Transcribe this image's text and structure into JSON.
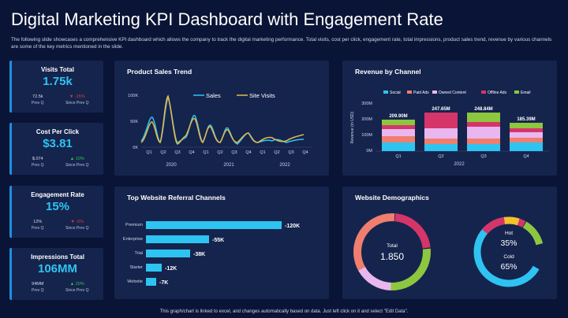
{
  "page": {
    "title": "Digital Marketing KPI Dashboard with Engagement Rate",
    "subtitle": "The following slide showcases a comprehensive KPI dashboard which allows the company to track the digital marketing performance. Total visits, cost per click, engagement rate, total impressions, product sales trend, revenue by various channels are some of the key metrics mentioned in the slide.",
    "footer": "This graph/chart is linked to excel, and changes automatically based on data. Just left click on it and select \"Edit Data\"."
  },
  "kpis": [
    {
      "title": "Visits Total",
      "value": "1.75k",
      "prev_value": "72.5k",
      "prev_label": "Prev Q",
      "since_arrow": "▼",
      "since_value": "-15%",
      "since_label": "Since Prev Q",
      "trend": "down"
    },
    {
      "title": "Cost Per Click",
      "value": "$3.81",
      "prev_value": "$.074",
      "prev_label": "Prev Q",
      "since_arrow": "▲",
      "since_value": "10%",
      "since_label": "Since Prev Q",
      "trend": "up"
    },
    {
      "title": "Engagement Rate",
      "value": "15%",
      "prev_value": "12%",
      "prev_label": "Prev Q",
      "since_arrow": "▼",
      "since_value": "-5%",
      "since_label": "Since Prev Q",
      "trend": "down"
    },
    {
      "title": "Impressions Total",
      "value": "106MM",
      "prev_value": "94MM",
      "prev_label": "Prev Q",
      "since_arrow": "▲",
      "since_value": "20%",
      "since_label": "Since Prev Q",
      "trend": "up"
    }
  ],
  "product_sales": {
    "title": "Product Sales Trend",
    "legend": [
      "Sales",
      "Site Visits"
    ],
    "y_ticks": [
      "100K",
      "50K",
      "0K"
    ],
    "quarters": [
      "Q1",
      "Q2",
      "Q3",
      "Q4",
      "Q1",
      "Q2",
      "Q3",
      "Q4",
      "Q1",
      "Q2",
      "Q3",
      "Q4"
    ],
    "years": [
      "2020",
      "2021",
      "2022"
    ],
    "colors": {
      "sales": "#2ec4f1",
      "visits": "#e8b84a"
    }
  },
  "revenue": {
    "title": "Revenue by Channel",
    "legend": [
      "Social",
      "Paid Ads",
      "Owned Content",
      "Offline Ads",
      "Email"
    ],
    "legend_colors": [
      "#2ec4f1",
      "#f07e6e",
      "#e9b7f0",
      "#d6356a",
      "#8dc63f"
    ],
    "y_ticks": [
      "300M",
      "200M",
      "100M",
      "0M"
    ],
    "ylabel": "Revenue (in USD)",
    "totals": [
      "209.90M",
      "247.65M",
      "248.84M",
      "185.39M"
    ],
    "quarters": [
      "Q1",
      "Q2",
      "Q3",
      "Q4"
    ],
    "year": "2022"
  },
  "referral": {
    "title": "Top Website Referral Channels",
    "categories": [
      "Premium",
      "Enterprise",
      "Trial",
      "Starter",
      "Website"
    ],
    "labels": [
      "-120K",
      "-55K",
      "-38K",
      "-12K",
      "-7K"
    ],
    "color": "#2ec4f1"
  },
  "demographics": {
    "title": "Website Demographics",
    "total_label": "Total",
    "total_value": "1.850",
    "hot_label": "Hot",
    "hot_value": "35%",
    "cold_label": "Cold",
    "cold_value": "65%"
  }
}
